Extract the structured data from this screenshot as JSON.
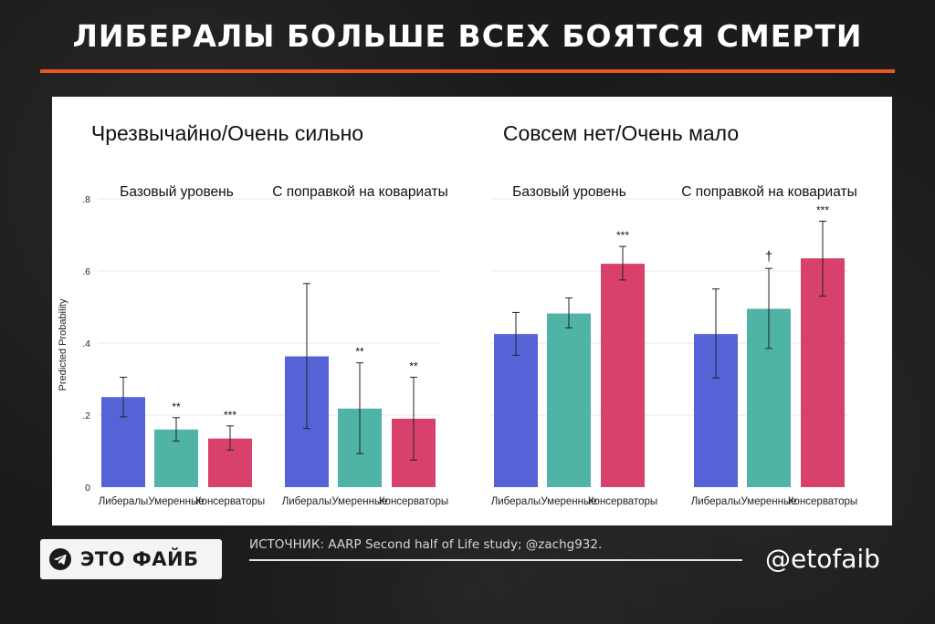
{
  "headline": "ЛИБЕРАЛЫ БОЛЬШЕ ВСЕХ БОЯТСЯ СМЕРТИ",
  "colors": {
    "accent": "#e8571e",
    "liberals": "#5563d6",
    "moderates": "#4fb3a5",
    "conservatives": "#d8416b"
  },
  "chart_data": {
    "type": "bar",
    "ylabel": "Predicted Probability",
    "ylim": [
      0,
      0.8
    ],
    "yticks": [
      {
        "value": 0,
        "label": "0"
      },
      {
        "value": 0.2,
        "label": ".2"
      },
      {
        "value": 0.4,
        "label": ".4"
      },
      {
        "value": 0.6,
        "label": ".6"
      },
      {
        "value": 0.8,
        "label": ".8"
      }
    ],
    "categories": [
      "Либералы",
      "Умеренные",
      "Консерваторы"
    ],
    "groups": [
      {
        "title": "Чрезвычайно/Очень сильно",
        "panels": [
          {
            "subtitle": "Базовый уровень",
            "values": [
              0.25,
              0.16,
              0.135
            ],
            "ci_low": [
              0.195,
              0.128,
              0.103
            ],
            "ci_high": [
              0.305,
              0.193,
              0.17
            ],
            "sig": [
              "",
              "**",
              "***"
            ]
          },
          {
            "subtitle": "С поправкой на ковариаты",
            "values": [
              0.363,
              0.218,
              0.19
            ],
            "ci_low": [
              0.163,
              0.093,
              0.075
            ],
            "ci_high": [
              0.565,
              0.345,
              0.305
            ],
            "sig": [
              "",
              "**",
              "**"
            ]
          }
        ]
      },
      {
        "title": "Совсем нет/Очень мало",
        "panels": [
          {
            "subtitle": "Базовый уровень",
            "values": [
              0.425,
              0.482,
              0.62
            ],
            "ci_low": [
              0.366,
              0.442,
              0.575
            ],
            "ci_high": [
              0.485,
              0.525,
              0.668
            ],
            "sig": [
              "",
              "",
              "***"
            ]
          },
          {
            "subtitle": "С поправкой на ковариаты",
            "values": [
              0.425,
              0.495,
              0.635
            ],
            "ci_low": [
              0.303,
              0.385,
              0.53
            ],
            "ci_high": [
              0.55,
              0.607,
              0.738
            ],
            "sig": [
              "",
              "†",
              "***"
            ]
          }
        ]
      }
    ]
  },
  "footer": {
    "brand": "ЭТО ФАЙБ",
    "brand_icon": "telegram-icon",
    "source": "ИСТОЧНИК: AARP Second half of Life study; @zachg932.",
    "handle": "@etofaib"
  }
}
